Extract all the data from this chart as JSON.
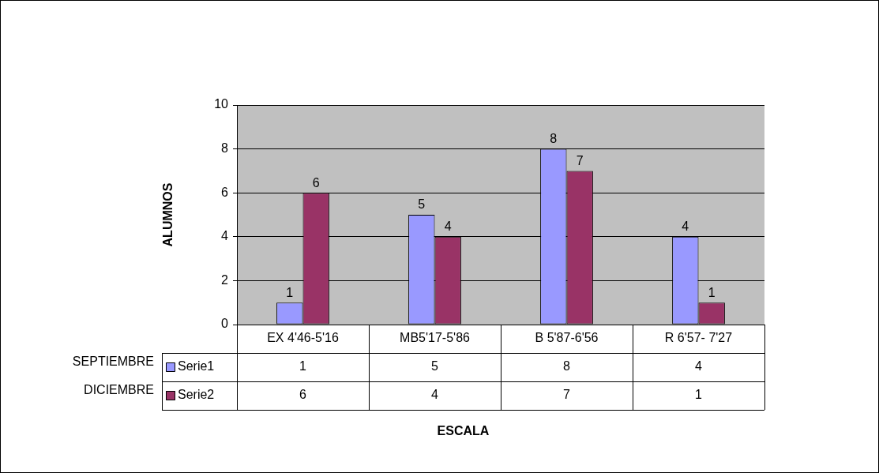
{
  "chart_data": {
    "type": "bar",
    "ylabel": "ALUMNOS",
    "categories": [
      "EX 4'46-5'16",
      "MB5'17-5'86",
      "B 5'87-6'56",
      "R 6'57- 7'27"
    ],
    "series": [
      {
        "name": "Serie1",
        "color": "#9999ff",
        "values": [
          1,
          5,
          8,
          4
        ]
      },
      {
        "name": "Serie2",
        "color": "#993366",
        "values": [
          6,
          4,
          7,
          1
        ]
      }
    ],
    "ylim": [
      0,
      10
    ],
    "yticks": [
      0,
      2,
      4,
      6,
      8,
      10
    ],
    "grid": "y",
    "legend": "bottom left",
    "data_labels": true,
    "annotations": [
      "SEPTIEMBRE",
      "DICIEMBRE",
      "ESCALA",
      {
        "text": "1",
        "x": "EX 4'46-5'16",
        "y": 1
      },
      {
        "text": "6",
        "x": "EX 4'46-5'16",
        "y": 6
      },
      {
        "text": "5",
        "x": "MB5'17-5'86",
        "y": 5
      },
      {
        "text": "4",
        "x": "MB5'17-5'86",
        "y": 4
      },
      {
        "text": "8",
        "x": "B 5'87-6'56",
        "y": 8
      },
      {
        "text": "7",
        "x": "B 5'87-6'56",
        "y": 7
      },
      {
        "text": "4",
        "x": "R 6'57- 7'27",
        "y": 4
      },
      {
        "text": "1",
        "x": "R 6'57- 7'27",
        "y": 1
      }
    ]
  }
}
